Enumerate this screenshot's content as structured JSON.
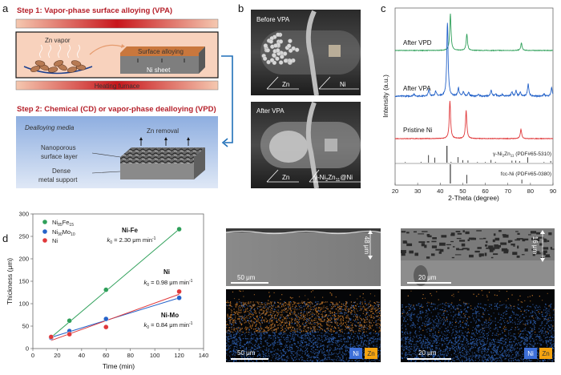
{
  "panel_a": {
    "label": "a",
    "step1": "Step 1: Vapor-phase surface alloying (VPA)",
    "zn_vapor": "Zn vapor",
    "surface_alloying": "Surface alloying",
    "ni_sheet": "Ni sheet",
    "heating_furnace": "Heating furnace",
    "step2": "Step 2: Chemical (CD) or vapor-phase dealloying (VPD)",
    "dealloying_media": "Dealloying media",
    "zn_removal": "Zn removal",
    "nanoporous_1": "Nanoporous",
    "nanoporous_2": "surface layer",
    "dense_1": "Dense",
    "dense_2": "metal support",
    "colors": {
      "step_text": "#b5202a",
      "arrow": "#1f6fb8"
    }
  },
  "panel_b": {
    "label": "b",
    "before": "Before VPA",
    "after": "After VPA",
    "zn_top": "Zn",
    "ni_top": "Ni",
    "zn_bottom": "Zn",
    "product_a": "γ-Ni",
    "product_sub1": "2",
    "product_b": "Zn",
    "product_sub2": "11",
    "product_c": "@Ni"
  },
  "panel_c_label": "c",
  "panel_d_label": "d",
  "chart_data": [
    {
      "type": "line",
      "title": "",
      "xlabel": "2-Theta (degree)",
      "ylabel": "Intensity (a.u.)",
      "xlim": [
        20,
        90
      ],
      "xticks": [
        "20",
        "30",
        "40",
        "50",
        "60",
        "70",
        "80",
        "90"
      ],
      "series": [
        {
          "name": "After VPD",
          "color": "#2fa05a",
          "peaks": [
            [
              44.5,
              1.0
            ],
            [
              51.8,
              0.45
            ],
            [
              76.0,
              0.2
            ]
          ]
        },
        {
          "name": "After VPA",
          "color": "#2563c9",
          "peaks": [
            [
              43.2,
              1.0
            ],
            [
              28.3,
              0.03
            ],
            [
              35.0,
              0.09
            ],
            [
              38.0,
              0.07
            ],
            [
              48.1,
              0.11
            ],
            [
              50.3,
              0.06
            ],
            [
              52.6,
              0.05
            ],
            [
              57.0,
              0.02
            ],
            [
              62.6,
              0.08
            ],
            [
              64.6,
              0.03
            ],
            [
              67.5,
              0.02
            ],
            [
              71.8,
              0.06
            ],
            [
              73.6,
              0.07
            ],
            [
              75.5,
              0.05
            ],
            [
              79.0,
              0.17
            ],
            [
              86.0,
              0.03
            ],
            [
              89.4,
              0.11
            ]
          ]
        },
        {
          "name": "Pristine Ni",
          "color": "#e0383a",
          "peaks": [
            [
              44.3,
              1.0
            ],
            [
              51.5,
              0.75
            ],
            [
              75.8,
              0.25
            ]
          ]
        }
      ],
      "references": [
        {
          "name_a": "γ-Ni",
          "sub1": "2",
          "name_b": "Zn",
          "sub2": "11",
          "name_c": " (PDF#65-5310)",
          "sticks": [
            [
              24.5,
              0.04
            ],
            [
              31.5,
              0.05
            ],
            [
              34.8,
              0.45
            ],
            [
              37.6,
              0.3
            ],
            [
              43.0,
              1.0
            ],
            [
              44.8,
              0.05
            ],
            [
              47.9,
              0.33
            ],
            [
              50.0,
              0.15
            ],
            [
              52.3,
              0.13
            ],
            [
              56.5,
              0.04
            ],
            [
              60.0,
              0.04
            ],
            [
              62.5,
              0.16
            ],
            [
              64.5,
              0.05
            ],
            [
              71.8,
              0.12
            ],
            [
              73.5,
              0.12
            ],
            [
              75.2,
              0.09
            ],
            [
              78.8,
              0.32
            ],
            [
              86.0,
              0.04
            ],
            [
              89.0,
              0.1
            ]
          ]
        },
        {
          "name_a": "fcc-Ni (PDF#65-0380)",
          "sticks": [
            [
              44.5,
              1.0
            ],
            [
              51.8,
              0.45
            ],
            [
              76.2,
              0.2
            ]
          ]
        }
      ]
    },
    {
      "type": "scatter",
      "title": "",
      "xlabel": "Time (min)",
      "ylabel": "Thickness (μm)",
      "xlim": [
        0,
        140
      ],
      "ylim": [
        0,
        300
      ],
      "xticks": [
        "0",
        "20",
        "40",
        "60",
        "80",
        "100",
        "120",
        "140"
      ],
      "yticks": [
        "0",
        "50",
        "100",
        "150",
        "200",
        "250",
        "300"
      ],
      "legend_position": "top-left",
      "series": [
        {
          "name_a": "Ni",
          "sub1": "85",
          "name_b": "Fe",
          "sub2": "15",
          "color": "#2fa05a",
          "x": [
            15,
            30,
            60,
            120
          ],
          "y": [
            25,
            62,
            131,
            266
          ],
          "fit": [
            [
              15,
              25
            ],
            [
              120,
              266
            ]
          ]
        },
        {
          "name_a": "Ni",
          "sub1": "90",
          "name_b": "Mo",
          "sub2": "10",
          "color": "#2563c9",
          "x": [
            15,
            30,
            60,
            120
          ],
          "y": [
            24,
            39,
            66,
            113
          ],
          "fit": [
            [
              15,
              25
            ],
            [
              120,
              113
            ]
          ]
        },
        {
          "name_a": "Ni",
          "sub1": "",
          "name_b": "",
          "sub2": "",
          "color": "#e0383a",
          "x": [
            15,
            30,
            60,
            120
          ],
          "y": [
            26,
            32,
            48,
            127
          ],
          "fit": [
            [
              15,
              18
            ],
            [
              120,
              121
            ]
          ]
        }
      ],
      "annotations": [
        {
          "name": "Ni-Fe",
          "k": "k",
          "k_sub": "0",
          "value": " = 2.30 μm min",
          "sup": "-1"
        },
        {
          "name": "Ni",
          "k": "k",
          "k_sub": "0",
          "value": " = 0.98 μm min",
          "sup": "-1"
        },
        {
          "name": "Ni-Mo",
          "k": "k",
          "k_sub": "0",
          "value": " = 0.84 μm min",
          "sup": "-1"
        }
      ]
    }
  ],
  "panel_e": {
    "label": "e",
    "thickness": "48 μm",
    "scale_top": "50 μm",
    "scale_bottom": "50 μm",
    "legend_ni": "Ni",
    "legend_zn": "Zn"
  },
  "panel_f": {
    "label": "f",
    "thickness": "16 μm",
    "scale_top": "20 μm",
    "scale_bottom": "20 μm",
    "legend_ni": "Ni",
    "legend_zn": "Zn"
  }
}
